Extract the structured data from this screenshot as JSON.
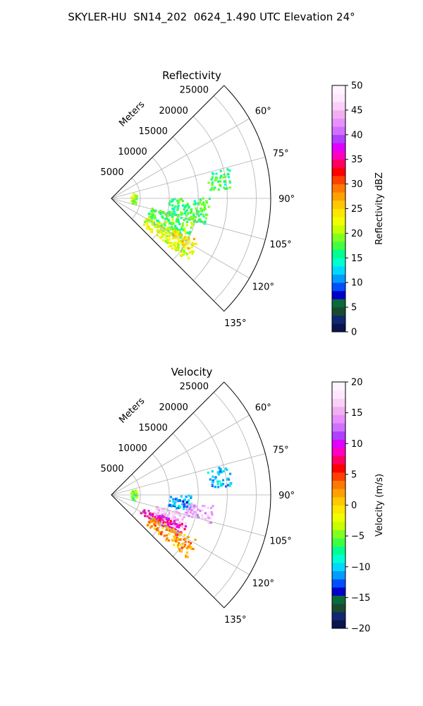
{
  "figure_title": "SKYLER-HU  SN14_202  0624_1.490 UTC Elevation 24°",
  "chart_data": [
    {
      "type": "polar sector (radar PPI)",
      "title": "Reflectivity",
      "range_axis_label": "Meters",
      "range_ticks": [
        5000,
        10000,
        15000,
        20000,
        25000
      ],
      "range_tick_labels": [
        "5000",
        "10000",
        "15000",
        "20000",
        "25000"
      ],
      "range_max": 27500,
      "angle_range_deg": [
        45,
        135
      ],
      "angle_ticks": [
        60,
        75,
        90,
        105,
        120,
        135
      ],
      "angle_tick_labels": [
        "60°",
        "75°",
        "90°",
        "105°",
        "120°",
        "135°"
      ],
      "grid": true,
      "colorbar": {
        "label": "Reflectivity dBZ",
        "min": 0,
        "max": 50,
        "ticks": [
          0,
          5,
          10,
          15,
          20,
          25,
          30,
          35,
          40,
          45,
          50
        ],
        "colors": [
          "#0a1450",
          "#0f2870",
          "#1a4a2e",
          "#0a6a3a",
          "#0000c8",
          "#0050ff",
          "#009cff",
          "#00d8ff",
          "#00ffd0",
          "#00ff90",
          "#40ff40",
          "#80ff20",
          "#c8ff00",
          "#f0ff00",
          "#ffe600",
          "#ffc800",
          "#ffa000",
          "#ff7800",
          "#ff4000",
          "#ff0000",
          "#ff0060",
          "#ff00c0",
          "#e000ff",
          "#b040ff",
          "#d070ff",
          "#e890ff",
          "#f0b0f0",
          "#f8d0f8",
          "#ffe8ff",
          "#fff4ff"
        ]
      },
      "echo_regions": [
        {
          "angle_deg": [
            76,
            86
          ],
          "range_m": [
            17000,
            21000
          ],
          "value_dbz": 17
        },
        {
          "angle_deg": [
            90,
            106
          ],
          "range_m": [
            10000,
            17000
          ],
          "value_dbz": 17
        },
        {
          "angle_deg": [
            104,
            122
          ],
          "range_m": [
            7000,
            15000
          ],
          "value_dbz": 18
        },
        {
          "angle_deg": [
            118,
            130
          ],
          "range_m": [
            7000,
            17000
          ],
          "value_dbz": 22
        },
        {
          "angle_deg": [
            116,
            124
          ],
          "range_m": [
            12000,
            16000
          ],
          "value_dbz": 25
        },
        {
          "angle_deg": [
            80,
            104
          ],
          "range_m": [
            3500,
            4500
          ],
          "value_dbz": 20
        }
      ]
    },
    {
      "type": "polar sector (radar PPI)",
      "title": "Velocity",
      "range_axis_label": "Meters",
      "range_ticks": [
        5000,
        10000,
        15000,
        20000,
        25000
      ],
      "range_tick_labels": [
        "5000",
        "10000",
        "15000",
        "20000",
        "25000"
      ],
      "range_max": 27500,
      "angle_range_deg": [
        45,
        135
      ],
      "angle_ticks": [
        60,
        75,
        90,
        105,
        120,
        135
      ],
      "angle_tick_labels": [
        "60°",
        "75°",
        "90°",
        "105°",
        "120°",
        "135°"
      ],
      "grid": true,
      "colorbar": {
        "label": "Velocity (m/s)",
        "min": -20,
        "max": 20,
        "ticks": [
          -20,
          -15,
          -10,
          -5,
          0,
          5,
          10,
          15,
          20
        ],
        "tick_labels": [
          "−20",
          "−15",
          "−10",
          "−5",
          "0",
          "5",
          "10",
          "15",
          "20"
        ],
        "colors": [
          "#0a1450",
          "#0f2870",
          "#1a4a2e",
          "#0a6a3a",
          "#0000c8",
          "#0050ff",
          "#009cff",
          "#00d8ff",
          "#00ffd0",
          "#00ff90",
          "#40ff40",
          "#80ff20",
          "#c8ff00",
          "#f0ff00",
          "#ffe600",
          "#ffc800",
          "#ffa000",
          "#ff7800",
          "#ff4000",
          "#ff0000",
          "#ff0060",
          "#ff00c0",
          "#e000ff",
          "#b040ff",
          "#d070ff",
          "#e890ff",
          "#f0b0f0",
          "#f8d0f8",
          "#ffe8ff",
          "#fff4ff"
        ]
      },
      "echo_regions": [
        {
          "angle_deg": [
            76,
            86
          ],
          "range_m": [
            17000,
            21000
          ],
          "value_ms": -11
        },
        {
          "angle_deg": [
            90,
            102
          ],
          "range_m": [
            10000,
            14000
          ],
          "value_ms": -11
        },
        {
          "angle_deg": [
            96,
            106
          ],
          "range_m": [
            13000,
            18000
          ],
          "value_ms": 15
        },
        {
          "angle_deg": [
            104,
            116
          ],
          "range_m": [
            8000,
            14000
          ],
          "value_ms": 16
        },
        {
          "angle_deg": [
            112,
            122
          ],
          "range_m": [
            6000,
            14000
          ],
          "value_ms": 9
        },
        {
          "angle_deg": [
            118,
            130
          ],
          "range_m": [
            8000,
            17000
          ],
          "value_ms": 2
        },
        {
          "angle_deg": [
            80,
            104
          ],
          "range_m": [
            3500,
            4500
          ],
          "value_ms": -5
        }
      ]
    }
  ]
}
